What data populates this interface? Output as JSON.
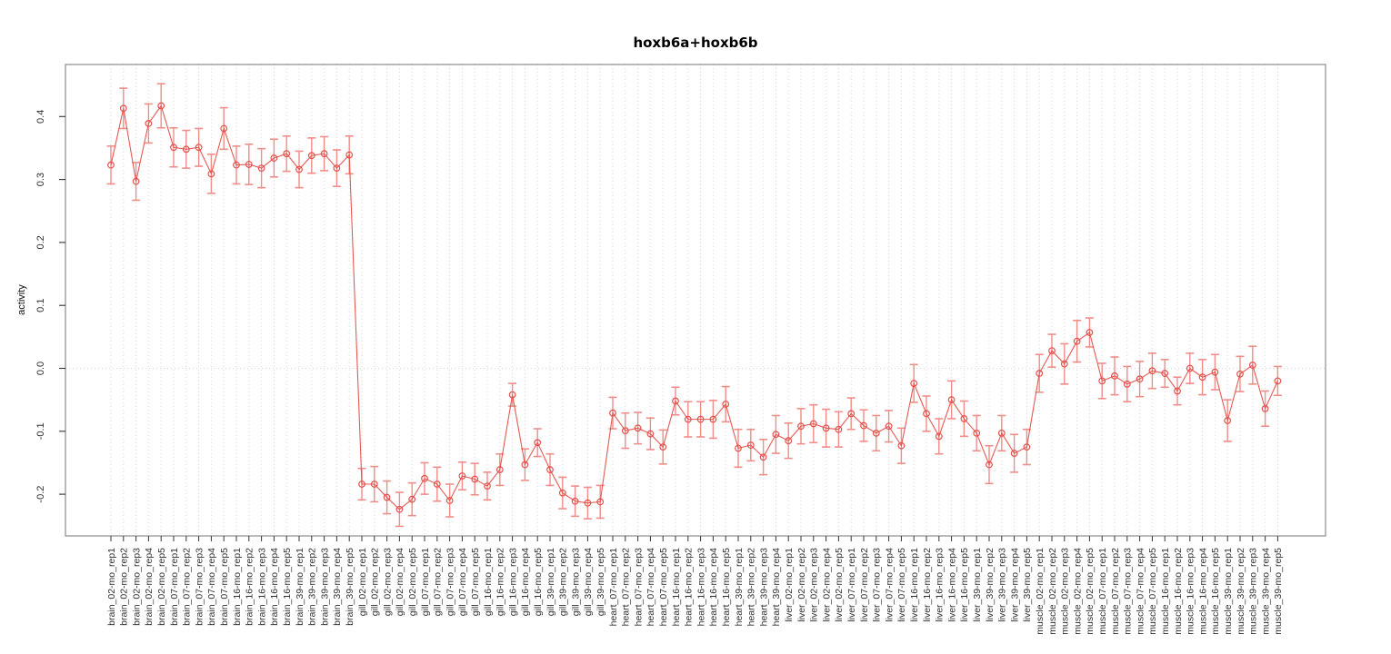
{
  "chart_data": {
    "type": "line",
    "title": "hoxb6a+hoxb6b",
    "xlabel": "",
    "ylabel": "activity",
    "ylim": [
      -0.27,
      0.48
    ],
    "yticks": [
      -0.2,
      -0.1,
      0.0,
      0.1,
      0.2,
      0.3,
      0.4
    ],
    "ytick_labels": [
      "-0.2",
      "-0.1",
      "0.0",
      "0.1",
      "0.2",
      "0.3",
      "0.4"
    ],
    "grid": "vertical dotted gridline at every category; dotted horizontal reference line at y=0",
    "legend_position": "none",
    "marker": "open-circle with vertical error bars and caps, points connected by line",
    "categories": [
      "brain_02-mo_rep1",
      "brain_02-mo_rep2",
      "brain_02-mo_rep3",
      "brain_02-mo_rep4",
      "brain_02-mo_rep5",
      "brain_07-mo_rep1",
      "brain_07-mo_rep2",
      "brain_07-mo_rep3",
      "brain_07-mo_rep4",
      "brain_07-mo_rep5",
      "brain_16-mo_rep1",
      "brain_16-mo_rep2",
      "brain_16-mo_rep3",
      "brain_16-mo_rep4",
      "brain_16-mo_rep5",
      "brain_39-mo_rep1",
      "brain_39-mo_rep2",
      "brain_39-mo_rep3",
      "brain_39-mo_rep4",
      "brain_39-mo_rep5",
      "gill_02-mo_rep1",
      "gill_02-mo_rep2",
      "gill_02-mo_rep3",
      "gill_02-mo_rep4",
      "gill_02-mo_rep5",
      "gill_07-mo_rep1",
      "gill_07-mo_rep2",
      "gill_07-mo_rep3",
      "gill_07-mo_rep4",
      "gill_07-mo_rep5",
      "gill_16-mo_rep1",
      "gill_16-mo_rep2",
      "gill_16-mo_rep3",
      "gill_16-mo_rep4",
      "gill_16-mo_rep5",
      "gill_39-mo_rep1",
      "gill_39-mo_rep2",
      "gill_39-mo_rep3",
      "gill_39-mo_rep4",
      "gill_39-mo_rep5",
      "heart_07-mo_rep1",
      "heart_07-mo_rep2",
      "heart_07-mo_rep3",
      "heart_07-mo_rep4",
      "heart_07-mo_rep5",
      "heart_16-mo_rep1",
      "heart_16-mo_rep2",
      "heart_16-mo_rep3",
      "heart_16-mo_rep4",
      "heart_16-mo_rep5",
      "heart_39-mo_rep1",
      "heart_39-mo_rep2",
      "heart_39-mo_rep3",
      "heart_39-mo_rep4",
      "liver_02-mo_rep1",
      "liver_02-mo_rep2",
      "liver_02-mo_rep3",
      "liver_02-mo_rep4",
      "liver_02-mo_rep5",
      "liver_07-mo_rep1",
      "liver_07-mo_rep2",
      "liver_07-mo_rep3",
      "liver_07-mo_rep4",
      "liver_07-mo_rep5",
      "liver_16-mo_rep1",
      "liver_16-mo_rep2",
      "liver_16-mo_rep3",
      "liver_16-mo_rep4",
      "liver_16-mo_rep5",
      "liver_39-mo_rep1",
      "liver_39-mo_rep2",
      "liver_39-mo_rep3",
      "liver_39-mo_rep4",
      "liver_39-mo_rep5",
      "muscle_02-mo_rep1",
      "muscle_02-mo_rep2",
      "muscle_02-mo_rep3",
      "muscle_02-mo_rep4",
      "muscle_02-mo_rep5",
      "muscle_07-mo_rep1",
      "muscle_07-mo_rep2",
      "muscle_07-mo_rep3",
      "muscle_07-mo_rep4",
      "muscle_07-mo_rep5",
      "muscle_16-mo_rep1",
      "muscle_16-mo_rep2",
      "muscle_16-mo_rep3",
      "muscle_16-mo_rep4",
      "muscle_16-mo_rep5",
      "muscle_39-mo_rep1",
      "muscle_39-mo_rep2",
      "muscle_39-mo_rep3",
      "muscle_39-mo_rep4",
      "muscle_39-mo_rep5"
    ],
    "values": [
      0.323,
      0.413,
      0.297,
      0.389,
      0.417,
      0.351,
      0.348,
      0.351,
      0.309,
      0.381,
      0.323,
      0.324,
      0.318,
      0.334,
      0.341,
      0.316,
      0.338,
      0.341,
      0.318,
      0.339,
      -0.184,
      -0.184,
      -0.205,
      -0.224,
      -0.208,
      -0.175,
      -0.184,
      -0.21,
      -0.171,
      -0.176,
      -0.187,
      -0.161,
      -0.042,
      -0.153,
      -0.118,
      -0.161,
      -0.198,
      -0.211,
      -0.214,
      -0.212,
      -0.071,
      -0.099,
      -0.095,
      -0.104,
      -0.125,
      -0.052,
      -0.081,
      -0.081,
      -0.081,
      -0.057,
      -0.127,
      -0.122,
      -0.141,
      -0.105,
      -0.115,
      -0.092,
      -0.088,
      -0.095,
      -0.097,
      -0.072,
      -0.091,
      -0.103,
      -0.092,
      -0.123,
      -0.024,
      -0.072,
      -0.108,
      -0.05,
      -0.08,
      -0.103,
      -0.153,
      -0.103,
      -0.135,
      -0.125,
      -0.008,
      0.028,
      0.007,
      0.043,
      0.057,
      -0.02,
      -0.012,
      -0.025,
      -0.017,
      -0.004,
      -0.008,
      -0.036,
      0.0,
      -0.014,
      -0.006,
      -0.083,
      -0.009,
      0.005,
      -0.064,
      -0.02
    ],
    "errors": [
      0.03,
      0.032,
      0.03,
      0.031,
      0.035,
      0.031,
      0.03,
      0.03,
      0.031,
      0.033,
      0.03,
      0.032,
      0.031,
      0.03,
      0.028,
      0.029,
      0.028,
      0.027,
      0.029,
      0.03,
      0.025,
      0.028,
      0.026,
      0.027,
      0.026,
      0.025,
      0.027,
      0.026,
      0.022,
      0.025,
      0.022,
      0.025,
      0.018,
      0.025,
      0.022,
      0.025,
      0.025,
      0.024,
      0.025,
      0.026,
      0.025,
      0.028,
      0.025,
      0.025,
      0.027,
      0.022,
      0.028,
      0.028,
      0.03,
      0.028,
      0.03,
      0.025,
      0.028,
      0.03,
      0.028,
      0.028,
      0.03,
      0.03,
      0.028,
      0.025,
      0.025,
      0.028,
      0.025,
      0.028,
      0.03,
      0.028,
      0.028,
      0.03,
      0.028,
      0.028,
      0.03,
      0.028,
      0.03,
      0.028,
      0.03,
      0.026,
      0.032,
      0.033,
      0.023,
      0.028,
      0.03,
      0.028,
      0.028,
      0.028,
      0.022,
      0.022,
      0.024,
      0.028,
      0.028,
      0.033,
      0.028,
      0.03,
      0.028,
      0.023
    ]
  },
  "colors": {
    "series": "#e4504b",
    "errorbar": "#ef8d89",
    "grid": "#d6d6d6",
    "axis_box": "#8c8c8c",
    "tick": "#333333",
    "background": "#ffffff"
  }
}
